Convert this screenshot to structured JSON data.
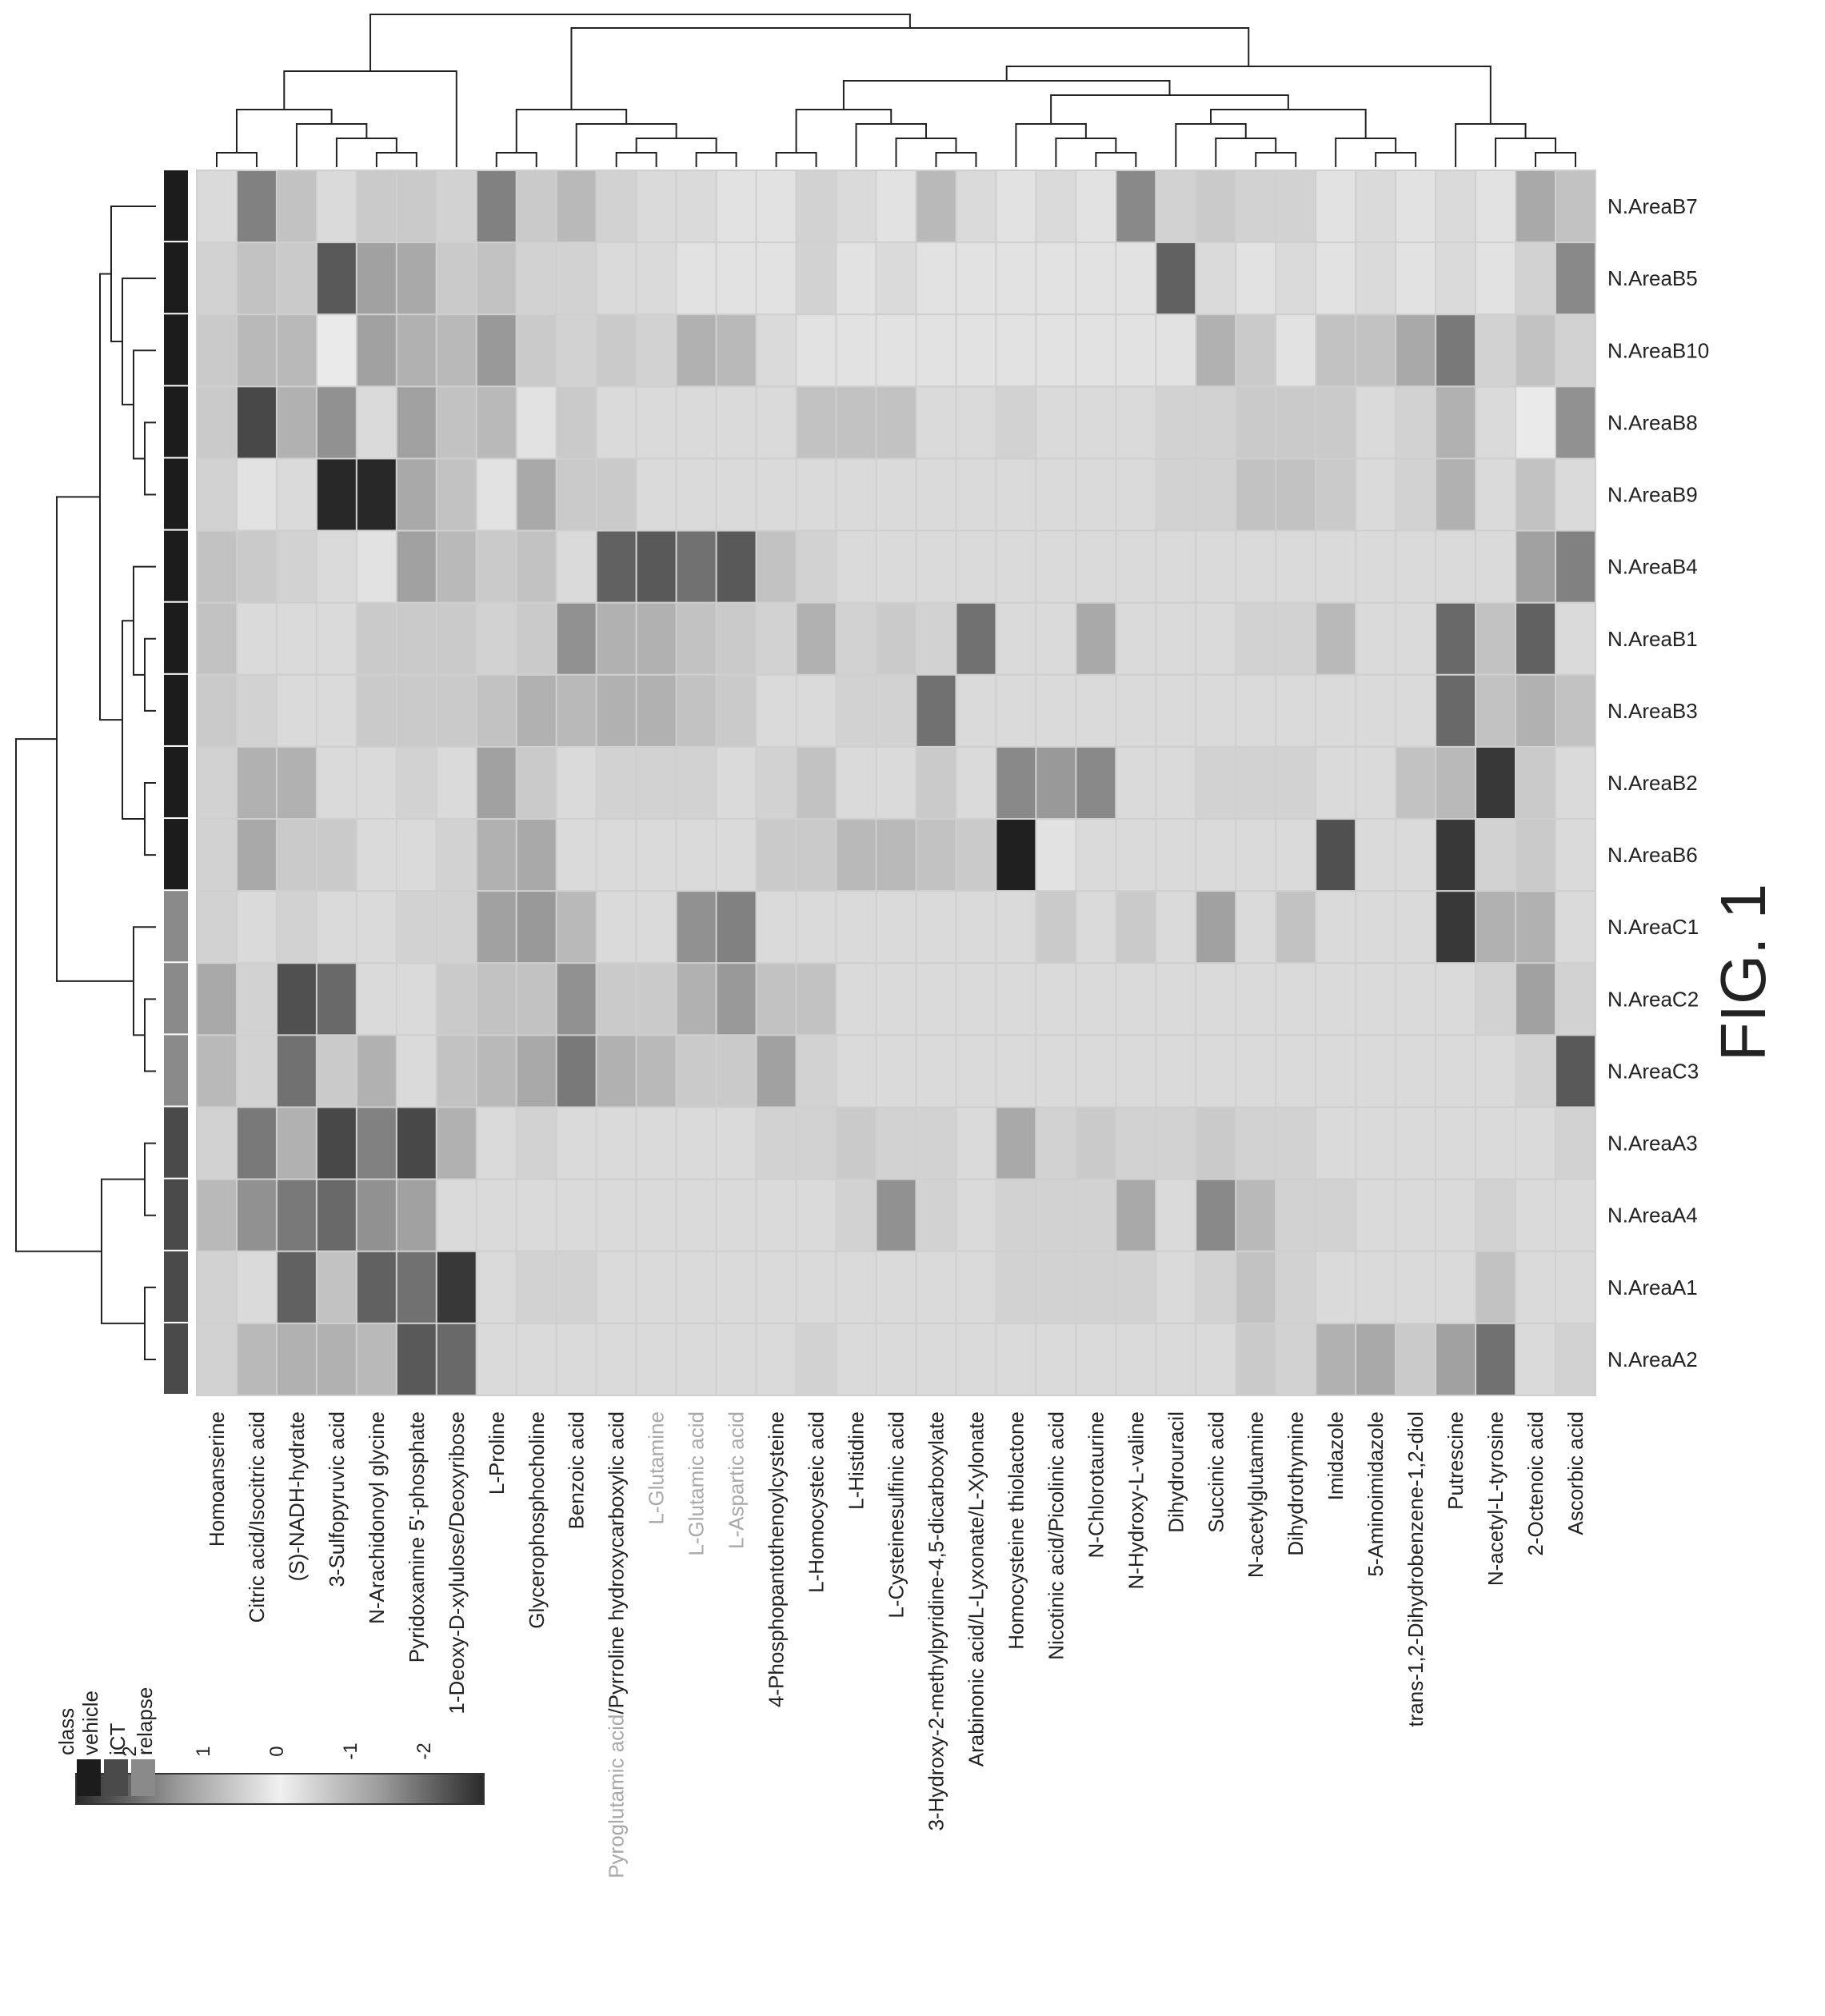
{
  "figure_label": "FIG. 1",
  "chart_data": {
    "type": "heatmap",
    "rows": [
      "N.AreaB7",
      "N.AreaB5",
      "N.AreaB10",
      "N.AreaB8",
      "N.AreaB9",
      "N.AreaB4",
      "N.AreaB1",
      "N.AreaB3",
      "N.AreaB2",
      "N.AreaB6",
      "N.AreaC1",
      "N.AreaC2",
      "N.AreaC3",
      "N.AreaA3",
      "N.AreaA4",
      "N.AreaA1",
      "N.AreaA2"
    ],
    "row_class": [
      "vehicle",
      "vehicle",
      "vehicle",
      "vehicle",
      "vehicle",
      "vehicle",
      "vehicle",
      "vehicle",
      "vehicle",
      "vehicle",
      "relapse",
      "relapse",
      "relapse",
      "iCT",
      "iCT",
      "iCT",
      "iCT"
    ],
    "columns": [
      "Homoanserine",
      "Citric acid/Isocitric acid",
      "(S)-NADH-hydrate",
      "3-Sulfopyruvic acid",
      "N-Arachidonoyl glycine",
      "Pyridoxamine 5'-phosphate",
      "1-Deoxy-D-xylulose/Deoxyribose",
      "L-Proline",
      "Glycerophosphocholine",
      "Benzoic acid",
      "Pyroglutamic acid/Pyrroline hydroxycarboxylic acid",
      "L-Glutamine",
      "L-Glutamic acid",
      "L-Aspartic acid",
      "4-Phosphopantothenoylcysteine",
      "L-Homocysteic acid",
      "L-Histidine",
      "L-Cysteinesulfinic acid",
      "3-Hydroxy-2-methylpyridine-4,5-dicarboxylate",
      "Arabinonic acid/L-Lyxonate/L-Xylonate",
      "Homocysteine thiolactone",
      "Nicotinic acid/Picolinic acid",
      "N-Chlorotaurine",
      "N-Hydroxy-L-valine",
      "Dihydrouracil",
      "Succinic acid",
      "N-acetylglutamine",
      "Dihydrothymine",
      "Imidazole",
      "5-Aminoimidazole",
      "trans-1,2-Dihydrobenzene-1,2-diol",
      "Putrescine",
      "N-acetyl-L-tyrosine",
      "2-Octenoic acid",
      "Ascorbic acid"
    ],
    "grey_column_labels": [
      "Pyroglutamic acid",
      "L-Glutamine",
      "L-Glutamic acid",
      "L-Aspartic acid"
    ],
    "values": [
      [
        0.3,
        1.4,
        0.6,
        0.3,
        0.5,
        0.5,
        0.4,
        1.4,
        0.5,
        0.7,
        0.4,
        0.3,
        0.3,
        0.2,
        0.2,
        0.4,
        0.3,
        0.2,
        0.7,
        0.3,
        0.2,
        0.3,
        0.2,
        1.3,
        0.4,
        0.5,
        0.4,
        0.4,
        0.2,
        0.3,
        0.2,
        0.3,
        0.2,
        0.9,
        0.6
      ],
      [
        0.4,
        0.6,
        0.5,
        1.9,
        1.0,
        0.9,
        0.5,
        0.6,
        0.4,
        0.4,
        0.3,
        0.3,
        0.2,
        0.2,
        0.2,
        0.4,
        0.2,
        0.3,
        0.2,
        0.2,
        0.2,
        0.2,
        0.2,
        0.2,
        1.8,
        0.3,
        0.2,
        0.3,
        0.2,
        0.3,
        0.2,
        0.3,
        0.2,
        0.4,
        1.3
      ],
      [
        0.5,
        0.7,
        0.7,
        0.1,
        1.0,
        0.8,
        0.7,
        1.1,
        0.5,
        0.4,
        0.5,
        0.4,
        0.8,
        0.7,
        0.3,
        0.2,
        0.2,
        0.2,
        0.2,
        0.2,
        0.2,
        0.2,
        0.2,
        0.2,
        0.2,
        0.8,
        0.5,
        0.2,
        0.6,
        0.6,
        0.9,
        1.5,
        0.4,
        0.6,
        0.4
      ],
      [
        0.5,
        2.1,
        0.8,
        1.2,
        0.3,
        1.0,
        0.6,
        0.7,
        0.2,
        0.5,
        0.3,
        0.3,
        0.3,
        0.3,
        0.3,
        0.6,
        0.6,
        0.6,
        0.3,
        0.3,
        0.4,
        0.3,
        0.3,
        0.3,
        0.4,
        0.4,
        0.5,
        0.5,
        0.5,
        0.3,
        0.4,
        0.8,
        0.3,
        0.1,
        1.2
      ],
      [
        0.4,
        0.2,
        0.3,
        2.5,
        2.5,
        0.9,
        0.6,
        0.2,
        0.9,
        0.5,
        0.5,
        0.3,
        0.3,
        0.3,
        0.3,
        0.3,
        0.3,
        0.3,
        0.3,
        0.3,
        0.3,
        0.3,
        0.3,
        0.3,
        0.4,
        0.4,
        0.6,
        0.6,
        0.5,
        0.3,
        0.4,
        0.8,
        0.3,
        0.6,
        0.3
      ],
      [
        0.6,
        0.5,
        0.4,
        0.3,
        0.2,
        1.0,
        0.7,
        0.5,
        0.6,
        0.3,
        1.8,
        1.9,
        1.6,
        1.9,
        0.6,
        0.4,
        0.3,
        0.3,
        0.3,
        0.3,
        0.3,
        0.3,
        0.3,
        0.3,
        0.3,
        0.3,
        0.3,
        0.3,
        0.3,
        0.3,
        0.3,
        0.3,
        0.3,
        1.0,
        1.4
      ],
      [
        0.6,
        0.3,
        0.3,
        0.3,
        0.5,
        0.5,
        0.5,
        0.4,
        0.5,
        1.2,
        0.8,
        0.8,
        0.6,
        0.5,
        0.4,
        0.8,
        0.4,
        0.5,
        0.4,
        1.6,
        0.3,
        0.3,
        0.9,
        0.3,
        0.3,
        0.3,
        0.4,
        0.4,
        0.7,
        0.3,
        0.3,
        1.7,
        0.6,
        1.8,
        0.3
      ],
      [
        0.5,
        0.4,
        0.3,
        0.3,
        0.5,
        0.5,
        0.5,
        0.6,
        0.8,
        0.7,
        0.8,
        0.8,
        0.6,
        0.5,
        0.3,
        0.3,
        0.4,
        0.4,
        1.6,
        0.3,
        0.3,
        0.3,
        0.3,
        0.3,
        0.3,
        0.3,
        0.3,
        0.3,
        0.3,
        0.3,
        0.3,
        1.7,
        0.6,
        0.8,
        0.6
      ],
      [
        0.4,
        0.8,
        0.8,
        0.3,
        0.3,
        0.4,
        0.3,
        1.0,
        0.5,
        0.3,
        0.4,
        0.4,
        0.4,
        0.3,
        0.4,
        0.6,
        0.3,
        0.3,
        0.5,
        0.3,
        1.3,
        1.1,
        1.3,
        0.3,
        0.3,
        0.4,
        0.4,
        0.4,
        0.3,
        0.3,
        0.6,
        0.7,
        2.3,
        0.5,
        0.3
      ],
      [
        0.4,
        0.9,
        0.5,
        0.5,
        0.3,
        0.3,
        0.4,
        0.8,
        0.9,
        0.3,
        0.3,
        0.3,
        0.3,
        0.3,
        0.5,
        0.5,
        0.7,
        0.7,
        0.6,
        0.5,
        2.6,
        0.2,
        0.3,
        0.3,
        0.3,
        0.3,
        0.3,
        0.3,
        2.0,
        0.3,
        0.3,
        2.3,
        0.4,
        0.5,
        0.3
      ],
      [
        0.4,
        0.3,
        0.4,
        0.3,
        0.3,
        0.4,
        0.4,
        1.0,
        1.1,
        0.7,
        0.3,
        0.3,
        1.2,
        1.4,
        0.3,
        0.3,
        0.3,
        0.3,
        0.3,
        0.3,
        0.3,
        0.5,
        0.3,
        0.5,
        0.3,
        1.0,
        0.3,
        0.6,
        0.3,
        0.3,
        0.3,
        2.3,
        0.8,
        0.8,
        0.3
      ],
      [
        0.9,
        0.4,
        2.0,
        1.7,
        0.3,
        0.3,
        0.5,
        0.6,
        0.6,
        1.2,
        0.5,
        0.5,
        0.8,
        1.1,
        0.6,
        0.6,
        0.3,
        0.3,
        0.3,
        0.3,
        0.3,
        0.3,
        0.3,
        0.3,
        0.3,
        0.3,
        0.3,
        0.3,
        0.3,
        0.3,
        0.3,
        0.3,
        0.4,
        1.0,
        0.4
      ],
      [
        0.7,
        0.4,
        1.6,
        0.5,
        0.8,
        0.3,
        0.6,
        0.7,
        0.9,
        1.5,
        0.8,
        0.7,
        0.5,
        0.5,
        1.0,
        0.4,
        0.3,
        0.3,
        0.3,
        0.3,
        0.3,
        0.3,
        0.3,
        0.3,
        0.3,
        0.3,
        0.3,
        0.3,
        0.3,
        0.3,
        0.3,
        0.3,
        0.3,
        0.4,
        1.9
      ],
      [
        0.4,
        1.5,
        0.8,
        2.1,
        1.4,
        2.1,
        0.8,
        0.3,
        0.4,
        0.3,
        0.3,
        0.3,
        0.3,
        0.3,
        0.4,
        0.4,
        0.5,
        0.4,
        0.4,
        0.3,
        0.9,
        0.4,
        0.5,
        0.4,
        0.4,
        0.5,
        0.4,
        0.4,
        0.3,
        0.3,
        0.3,
        0.3,
        0.3,
        0.3,
        0.4
      ],
      [
        0.7,
        1.2,
        1.5,
        1.7,
        1.2,
        1.0,
        0.3,
        0.3,
        0.3,
        0.3,
        0.3,
        0.3,
        0.3,
        0.3,
        0.3,
        0.3,
        0.4,
        1.2,
        0.4,
        0.3,
        0.4,
        0.4,
        0.4,
        0.9,
        0.3,
        1.3,
        0.7,
        0.4,
        0.4,
        0.3,
        0.3,
        0.3,
        0.4,
        0.3,
        0.3
      ],
      [
        0.4,
        0.3,
        1.8,
        0.6,
        1.8,
        1.6,
        2.3,
        0.3,
        0.4,
        0.4,
        0.3,
        0.3,
        0.3,
        0.3,
        0.3,
        0.3,
        0.3,
        0.3,
        0.3,
        0.3,
        0.4,
        0.4,
        0.4,
        0.4,
        0.3,
        0.4,
        0.6,
        0.4,
        0.3,
        0.3,
        0.3,
        0.3,
        0.6,
        0.3,
        0.3
      ],
      [
        0.4,
        0.7,
        0.8,
        0.8,
        0.7,
        1.9,
        1.7,
        0.3,
        0.3,
        0.3,
        0.3,
        0.3,
        0.3,
        0.3,
        0.3,
        0.4,
        0.3,
        0.3,
        0.3,
        0.3,
        0.3,
        0.3,
        0.3,
        0.3,
        0.3,
        0.3,
        0.5,
        0.4,
        0.8,
        0.9,
        0.5,
        1.0,
        1.6,
        0.3,
        0.4
      ]
    ],
    "color_scale": {
      "ticks": [
        2,
        1,
        0,
        -1,
        -2
      ],
      "colors": [
        "#2a2a2a",
        "#9a9a9a",
        "#f0f0f0",
        "#9a9a9a",
        "#2a2a2a"
      ]
    },
    "class_legend": {
      "title": "class",
      "items": [
        {
          "label": "vehicle",
          "color": "#1c1c1c"
        },
        {
          "label": "iCT",
          "color": "#4a4a4a"
        },
        {
          "label": "relapse",
          "color": "#8a8a8a"
        }
      ]
    }
  }
}
